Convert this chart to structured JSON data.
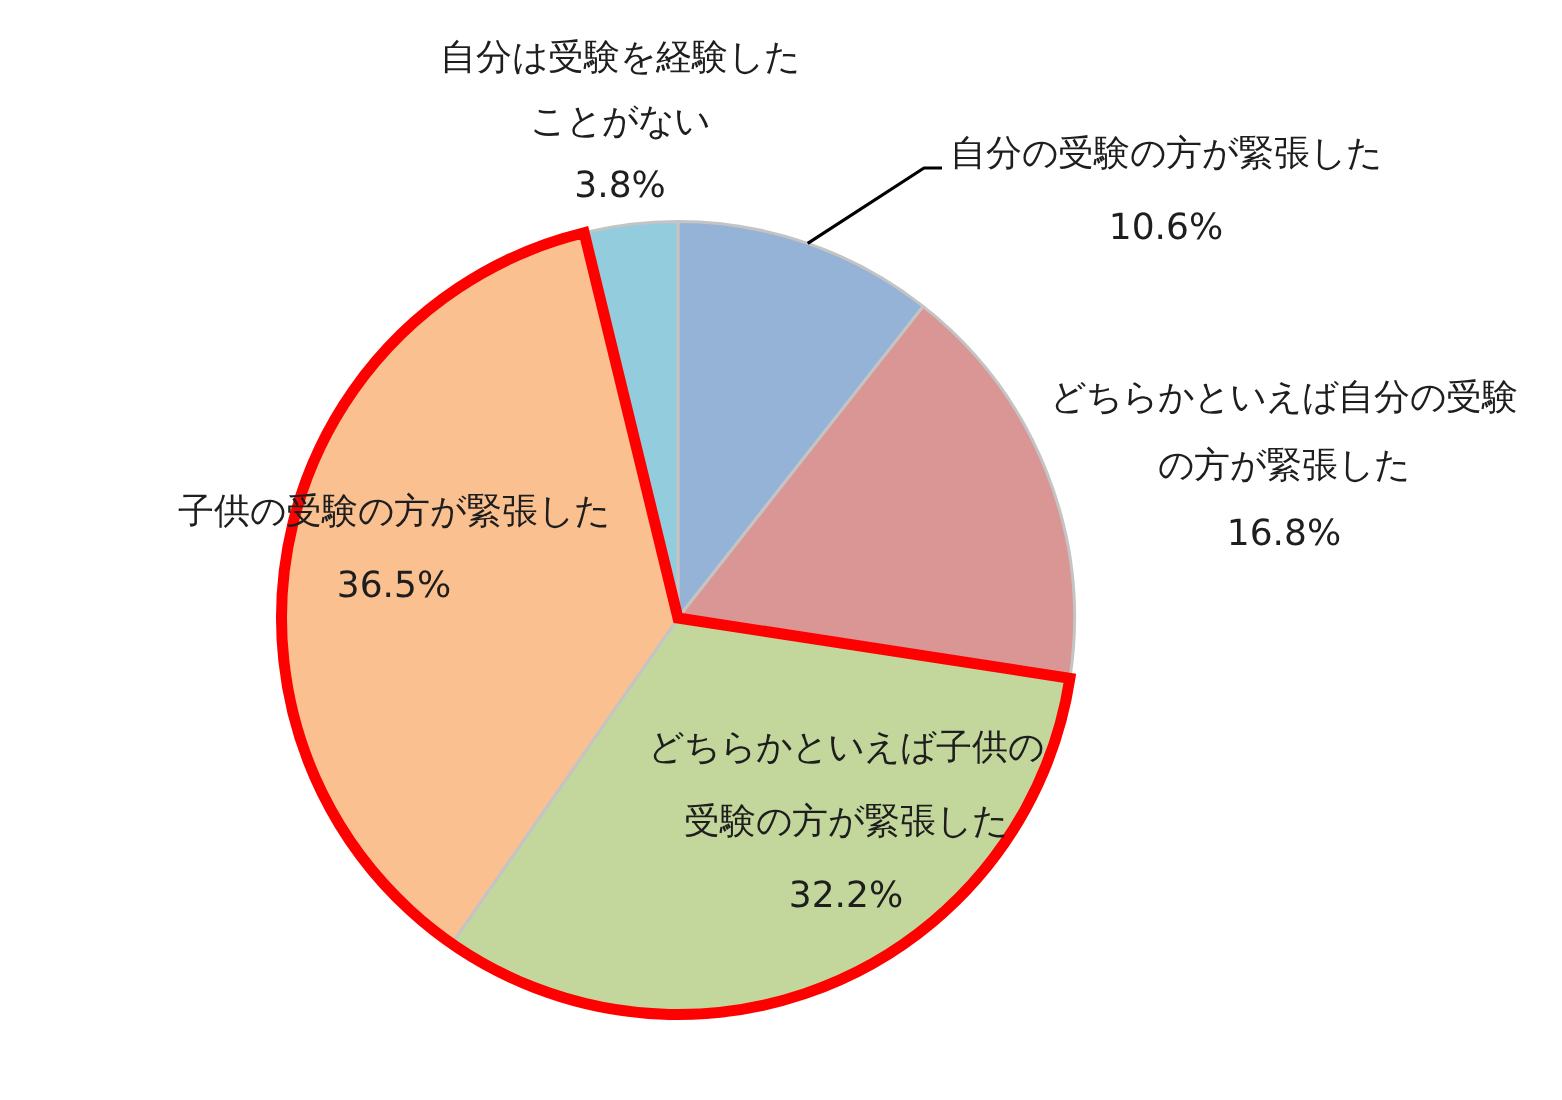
{
  "chart_data": {
    "type": "pie",
    "categories": [
      "自分の受験の方が緊張した",
      "どちらかといえば自分の受験の方が緊張した",
      "どちらかといえば子供の受験の方が緊張した",
      "子供の受験の方が緊張した",
      "自分は受験を経験したことがない"
    ],
    "values": [
      10.6,
      16.8,
      32.2,
      36.5,
      3.8
    ],
    "colors": [
      "#95b3d7",
      "#d99694",
      "#c3d69b",
      "#fac090",
      "#93cddd"
    ],
    "value_labels": [
      "10.6%",
      "16.8%",
      "32.2%",
      "36.5%",
      "3.8%"
    ],
    "legend": false
  }
}
